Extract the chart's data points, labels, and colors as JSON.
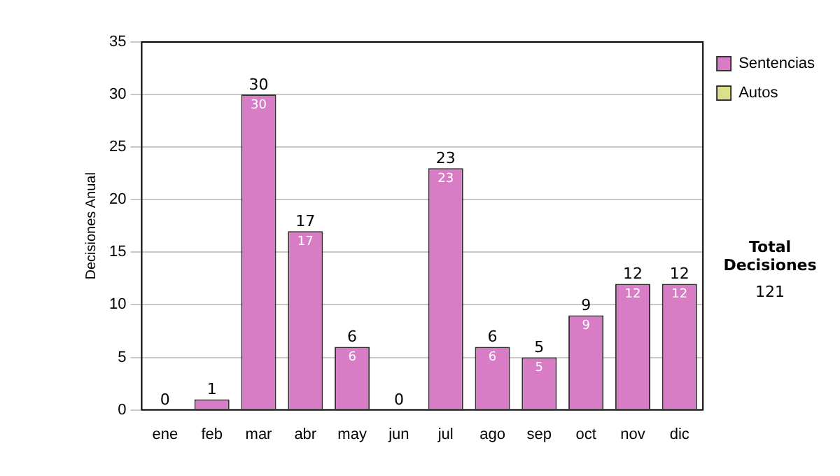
{
  "chart_data": {
    "type": "bar",
    "ylabel": "Decisiones Anual",
    "categories": [
      "ene",
      "feb",
      "mar",
      "abr",
      "may",
      "jun",
      "jul",
      "ago",
      "sep",
      "oct",
      "nov",
      "dic"
    ],
    "series": [
      {
        "name": "Sentencias",
        "color": "#d77cc5",
        "values": [
          0,
          1,
          30,
          17,
          6,
          0,
          23,
          6,
          5,
          9,
          12,
          12
        ],
        "value_labels": [
          null,
          null,
          "30",
          "17",
          "6",
          null,
          "23",
          "6",
          "5",
          "9",
          "12",
          "12"
        ]
      },
      {
        "name": "Autos",
        "color": "#dde08a",
        "values": [
          0,
          0,
          0,
          0,
          0,
          0,
          0,
          0,
          0,
          0,
          0,
          0
        ]
      }
    ],
    "stacked": true,
    "totals": [
      "0",
      "1",
      "30",
      "17",
      "6",
      "0",
      "23",
      "6",
      "5",
      "9",
      "12",
      "12"
    ],
    "ylim": [
      0,
      35
    ],
    "yticks": [
      0,
      5,
      10,
      15,
      20,
      25,
      30,
      35
    ],
    "grid": "y",
    "legend": "right",
    "annotations": [
      "Total Decisiones",
      "121"
    ]
  }
}
